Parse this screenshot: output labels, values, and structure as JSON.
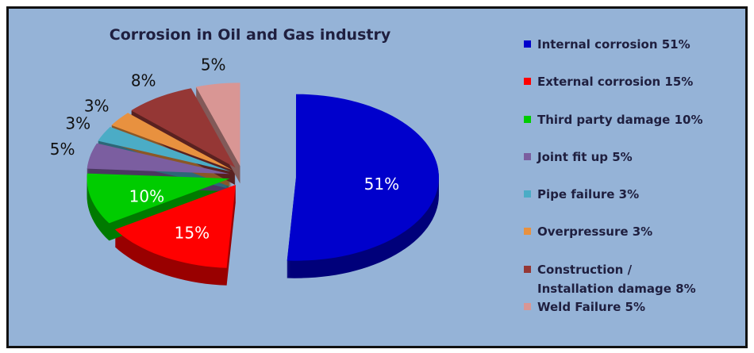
{
  "chart_data": {
    "type": "pie3d",
    "title": "Corrosion  in Oil and Gas industry",
    "categories": [
      "Internal corrosion 51%",
      "External corrosion 15%",
      "Third party damage 10%",
      "Joint fit up 5%",
      "Pipe failure 3%",
      "Overpressure 3%",
      "Construction / Installation damage 8%",
      "Weld Failure 5%"
    ],
    "values": [
      51,
      15,
      10,
      5,
      3,
      3,
      8,
      5
    ],
    "value_labels": [
      "51%",
      "15%",
      "10%",
      "5%",
      "3%",
      "3%",
      "8%",
      "5%"
    ],
    "colors": [
      "#0000CC",
      "#FF0000",
      "#00CC00",
      "#7B5EA0",
      "#4BACC6",
      "#E8913F",
      "#953735",
      "#D99694"
    ],
    "legend": "right"
  }
}
